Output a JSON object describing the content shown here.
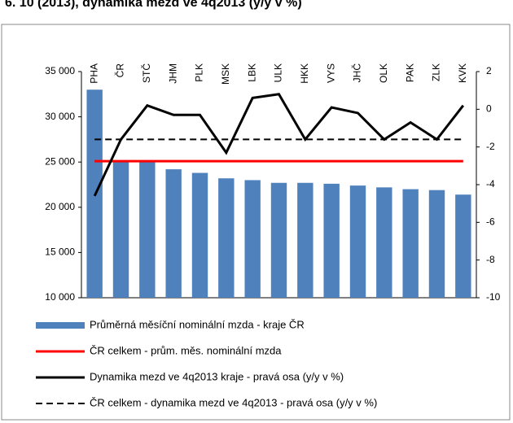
{
  "chart_data": {
    "type": "bar",
    "title": "6. 10 (2013), dynamika mezd ve 4q2013 (y/y v %)",
    "categories": [
      "PHA",
      "ČR",
      "STČ",
      "JHM",
      "PLK",
      "MSK",
      "LBK",
      "ULK",
      "HKK",
      "VYS",
      "JHČ",
      "OLK",
      "PAK",
      "ZLK",
      "KVK"
    ],
    "series": [
      {
        "name": "Průměrná měsíční nominální mzda - kraje ČR",
        "type": "bar",
        "color": "#4f81bd",
        "axis": "y",
        "values": [
          33000,
          25200,
          25200,
          24200,
          23800,
          23200,
          23000,
          22700,
          22700,
          22600,
          22400,
          22200,
          22000,
          21900,
          21400
        ]
      },
      {
        "name": "ČR celkem - prům. měs. nominální mzda",
        "type": "line",
        "color": "#ff0000",
        "axis": "y",
        "values": [
          25100,
          25100,
          25100,
          25100,
          25100,
          25100,
          25100,
          25100,
          25100,
          25100,
          25100,
          25100,
          25100,
          25100,
          25100
        ]
      },
      {
        "name": "Dynamika mezd ve 4q2013 kraje - pravá osa (y/y v %)",
        "type": "line",
        "color": "#000000",
        "axis": "y2",
        "values": [
          -4.6,
          -1.6,
          0.2,
          -0.3,
          -0.3,
          -2.3,
          0.6,
          0.8,
          -1.6,
          0.1,
          -0.2,
          -1.6,
          -0.7,
          -1.6,
          0.2
        ]
      },
      {
        "name": "ČR celkem - dynamika mezd ve 4q2013 - pravá osa (y/y v %)",
        "type": "line",
        "color": "#000000",
        "axis": "y2",
        "dashed": true,
        "values": [
          -1.6,
          -1.6,
          -1.6,
          -1.6,
          -1.6,
          -1.6,
          -1.6,
          -1.6,
          -1.6,
          -1.6,
          -1.6,
          -1.6,
          -1.6,
          -1.6,
          -1.6
        ]
      }
    ],
    "ylim": [
      10000,
      35000
    ],
    "yticks": [
      {
        "value": 10000,
        "label": "10 000"
      },
      {
        "value": 15000,
        "label": "15 000"
      },
      {
        "value": 20000,
        "label": "20 000"
      },
      {
        "value": 25000,
        "label": "25 000"
      },
      {
        "value": 30000,
        "label": "30 000"
      },
      {
        "value": 35000,
        "label": "35 000"
      }
    ],
    "y2lim": [
      -10,
      2
    ],
    "y2ticks": [
      -10,
      -8,
      -6,
      -4,
      -2,
      0,
      2
    ]
  }
}
